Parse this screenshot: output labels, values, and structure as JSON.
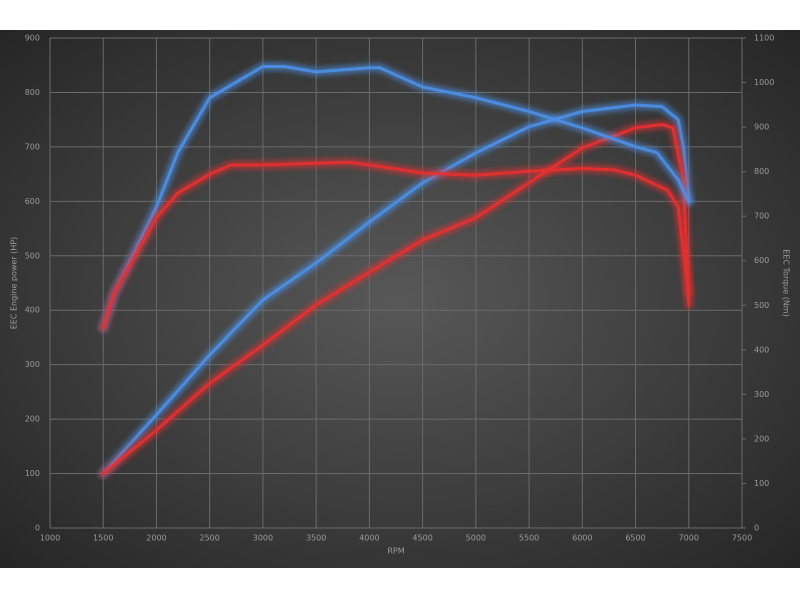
{
  "chart_data": {
    "type": "line",
    "x_label": "RPM",
    "y_label": "EEC Engine power (HP)",
    "y2_label": "EEC Torque (Nm)",
    "xlim": [
      1000,
      7500
    ],
    "xticks": [
      1000,
      1500,
      2000,
      2500,
      3000,
      3500,
      4000,
      4500,
      5000,
      5500,
      6000,
      6500,
      7000,
      7500
    ],
    "ylim": [
      0,
      900
    ],
    "yticks": [
      0,
      100,
      200,
      300,
      400,
      500,
      600,
      700,
      800,
      900
    ],
    "y2lim": [
      0,
      1100
    ],
    "y2ticks": [
      0,
      100,
      200,
      300,
      400,
      500,
      600,
      700,
      800,
      900,
      1000,
      1100
    ],
    "grid": true,
    "series": [
      {
        "color": "#4d8fe6",
        "x": [
          1500,
          2000,
          2500,
          3000,
          3500,
          4000,
          4500,
          5000,
          5500,
          6000,
          6500,
          6750,
          6900,
          6950,
          7000
        ],
        "values": [
          100,
          208,
          318,
          419,
          487,
          562,
          634,
          689,
          737,
          765,
          777,
          774,
          750,
          700,
          603
        ]
      },
      {
        "color": "#e63030",
        "x": [
          1500,
          2000,
          2500,
          3000,
          3500,
          4000,
          4500,
          5000,
          5500,
          6000,
          6500,
          6750,
          6850,
          6950,
          7000
        ],
        "values": [
          100,
          180,
          266,
          336,
          410,
          470,
          529,
          570,
          634,
          698,
          735,
          741,
          735,
          640,
          410
        ]
      },
      {
        "color": "#4d8fe6",
        "axis": "y2",
        "x": [
          1500,
          1600,
          2000,
          2200,
          2500,
          3000,
          3200,
          3500,
          4000,
          4100,
          4500,
          5000,
          5500,
          6000,
          6500,
          6700,
          6900,
          7000
        ],
        "values": [
          449,
          526,
          721,
          843,
          966,
          1036,
          1036,
          1024,
          1033,
          1033,
          990,
          966,
          935,
          898,
          856,
          843,
          782,
          733
        ]
      },
      {
        "color": "#e63030",
        "axis": "y2",
        "x": [
          1500,
          1600,
          2000,
          2200,
          2500,
          2700,
          3000,
          3500,
          3800,
          4000,
          4500,
          5000,
          5500,
          6000,
          6300,
          6500,
          6800,
          6900,
          7000
        ],
        "values": [
          449,
          526,
          697,
          752,
          794,
          815,
          815,
          819,
          821,
          815,
          797,
          792,
          801,
          807,
          804,
          792,
          758,
          721,
          526
        ]
      }
    ]
  }
}
